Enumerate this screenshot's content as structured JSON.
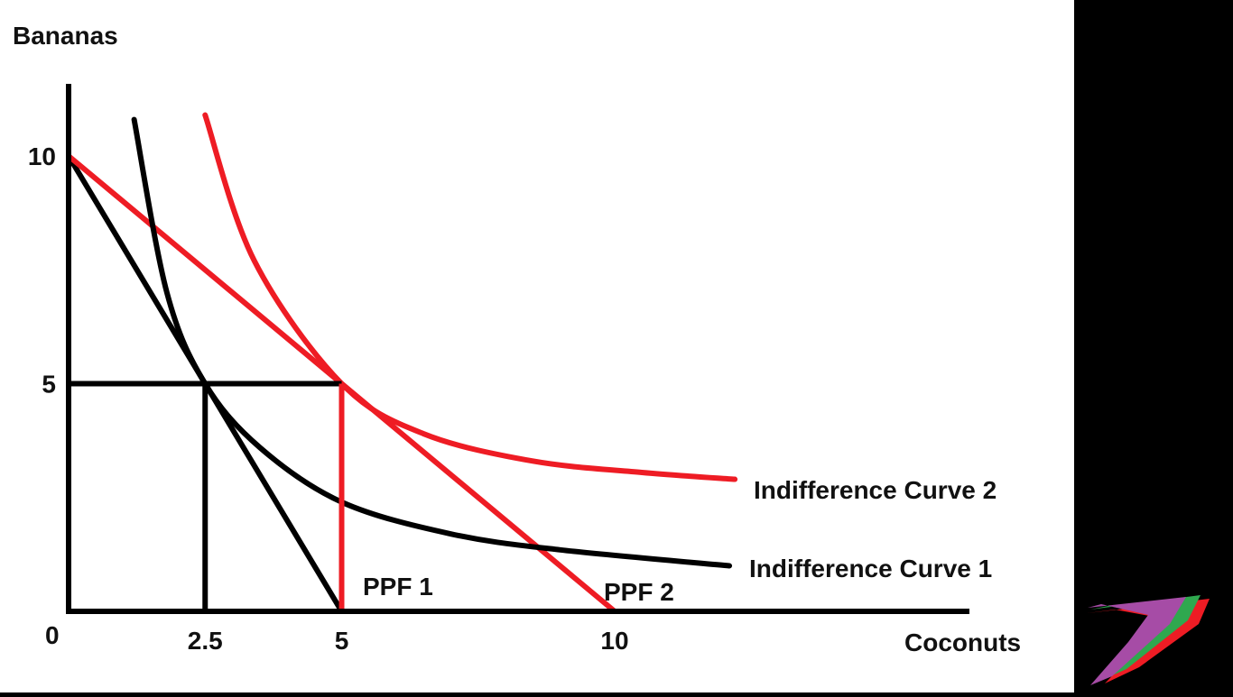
{
  "chart_data": {
    "type": "line",
    "title": "",
    "xlabel": "Coconuts",
    "ylabel": "Bananas",
    "origin_label": "0",
    "xlim": [
      0,
      13.2
    ],
    "ylim": [
      0,
      11.5
    ],
    "x_ticks": [
      {
        "value": 2.5,
        "label": "2.5"
      },
      {
        "value": 5,
        "label": "5"
      },
      {
        "value": 10,
        "label": "10"
      }
    ],
    "y_ticks": [
      {
        "value": 5,
        "label": "5"
      },
      {
        "value": 10,
        "label": "10"
      }
    ],
    "grid": false,
    "series": [
      {
        "name": "PPF 1",
        "kind": "line",
        "color": "#000000",
        "points": [
          [
            0,
            10
          ],
          [
            5,
            0
          ]
        ]
      },
      {
        "name": "PPF 2",
        "kind": "line",
        "color": "#ee1c24",
        "points": [
          [
            0,
            10
          ],
          [
            10,
            0
          ]
        ]
      },
      {
        "name": "Indifference Curve 1",
        "kind": "curve",
        "color": "#000000",
        "points": [
          [
            1.2,
            10.8
          ],
          [
            1.8,
            7.0
          ],
          [
            2.5,
            5.0
          ],
          [
            3.5,
            3.6
          ],
          [
            5,
            2.4
          ],
          [
            7,
            1.7
          ],
          [
            9,
            1.35
          ],
          [
            12.1,
            1.0
          ]
        ]
      },
      {
        "name": "Indifference Curve 2",
        "kind": "curve",
        "color": "#ee1c24",
        "points": [
          [
            2.5,
            10.9
          ],
          [
            3.4,
            7.7
          ],
          [
            5,
            5.0
          ],
          [
            6.5,
            3.9
          ],
          [
            8.5,
            3.3
          ],
          [
            10.5,
            3.05
          ],
          [
            12.2,
            2.9
          ]
        ]
      }
    ],
    "guides": [
      {
        "from": [
          0,
          5
        ],
        "to": [
          5,
          5
        ],
        "color": "#000000"
      },
      {
        "from": [
          2.5,
          0
        ],
        "to": [
          2.5,
          5
        ],
        "color": "#000000"
      },
      {
        "from": [
          5,
          0
        ],
        "to": [
          5,
          5
        ],
        "color": "#ee1c24"
      }
    ],
    "logo": "swoosh-logo"
  }
}
